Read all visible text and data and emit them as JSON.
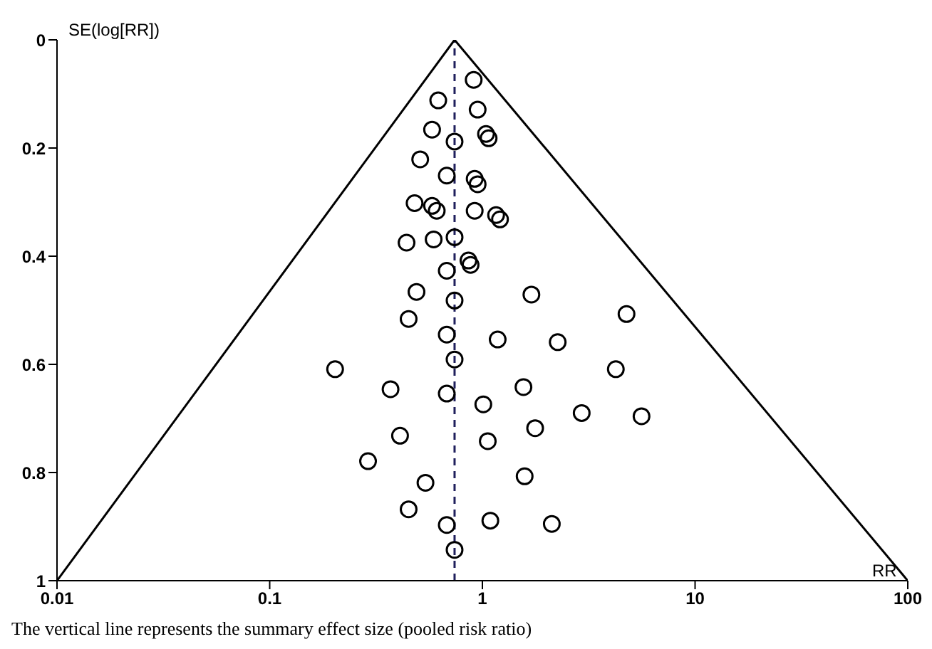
{
  "chart_data": {
    "type": "scatter",
    "ylabel": "SE(log[RR])",
    "xlabel": "RR",
    "annotations": [
      "The vertical line represents the summary effect size (pooled risk ratio)"
    ],
    "log": "x",
    "xlim": [
      0.01,
      100
    ],
    "xticks": [
      0.01,
      0.1,
      1,
      10,
      100
    ],
    "ylim": [
      1,
      0
    ],
    "yticks": [
      0,
      0.2,
      0.4,
      0.6,
      0.8,
      1
    ],
    "grid": false,
    "legend": false,
    "marker": "circle",
    "ref_lines": [
      {
        "axis": "x",
        "value": 0.74,
        "color": "#1f1f5c",
        "line_style": "dashed"
      }
    ],
    "series": [
      {
        "color": "#000000",
        "x": [
          0.91,
          0.62,
          0.95,
          0.58,
          1.04,
          1.07,
          0.74,
          0.51,
          0.68,
          0.92,
          0.95,
          0.48,
          0.58,
          0.61,
          0.92,
          1.16,
          1.21,
          0.74,
          0.44,
          0.59,
          0.86,
          0.88,
          0.68,
          0.49,
          1.7,
          0.74,
          0.45,
          4.76,
          0.68,
          1.18,
          2.26,
          0.74,
          0.203,
          4.24,
          0.37,
          0.68,
          1.56,
          1.01,
          2.93,
          5.6,
          1.77,
          0.41,
          1.06,
          0.29,
          1.58,
          0.54,
          0.45,
          0.68,
          1.09,
          2.12,
          0.74
        ],
        "values": [
          0.074,
          0.112,
          0.129,
          0.166,
          0.174,
          0.182,
          0.188,
          0.221,
          0.251,
          0.257,
          0.267,
          0.302,
          0.307,
          0.316,
          0.316,
          0.324,
          0.332,
          0.365,
          0.375,
          0.369,
          0.408,
          0.416,
          0.427,
          0.466,
          0.471,
          0.482,
          0.516,
          0.507,
          0.545,
          0.554,
          0.559,
          0.591,
          0.609,
          0.609,
          0.646,
          0.654,
          0.642,
          0.674,
          0.69,
          0.696,
          0.718,
          0.732,
          0.742,
          0.779,
          0.807,
          0.819,
          0.868,
          0.897,
          0.889,
          0.895,
          0.943
        ]
      },
      {
        "type": "line",
        "color": "#000000",
        "marker": "none",
        "line_style": "solid",
        "x": [
          0.01,
          0.74
        ],
        "values": [
          1,
          0
        ]
      },
      {
        "type": "line",
        "color": "#000000",
        "marker": "none",
        "line_style": "solid",
        "x": [
          0.74,
          100
        ],
        "values": [
          0,
          1
        ]
      }
    ]
  }
}
